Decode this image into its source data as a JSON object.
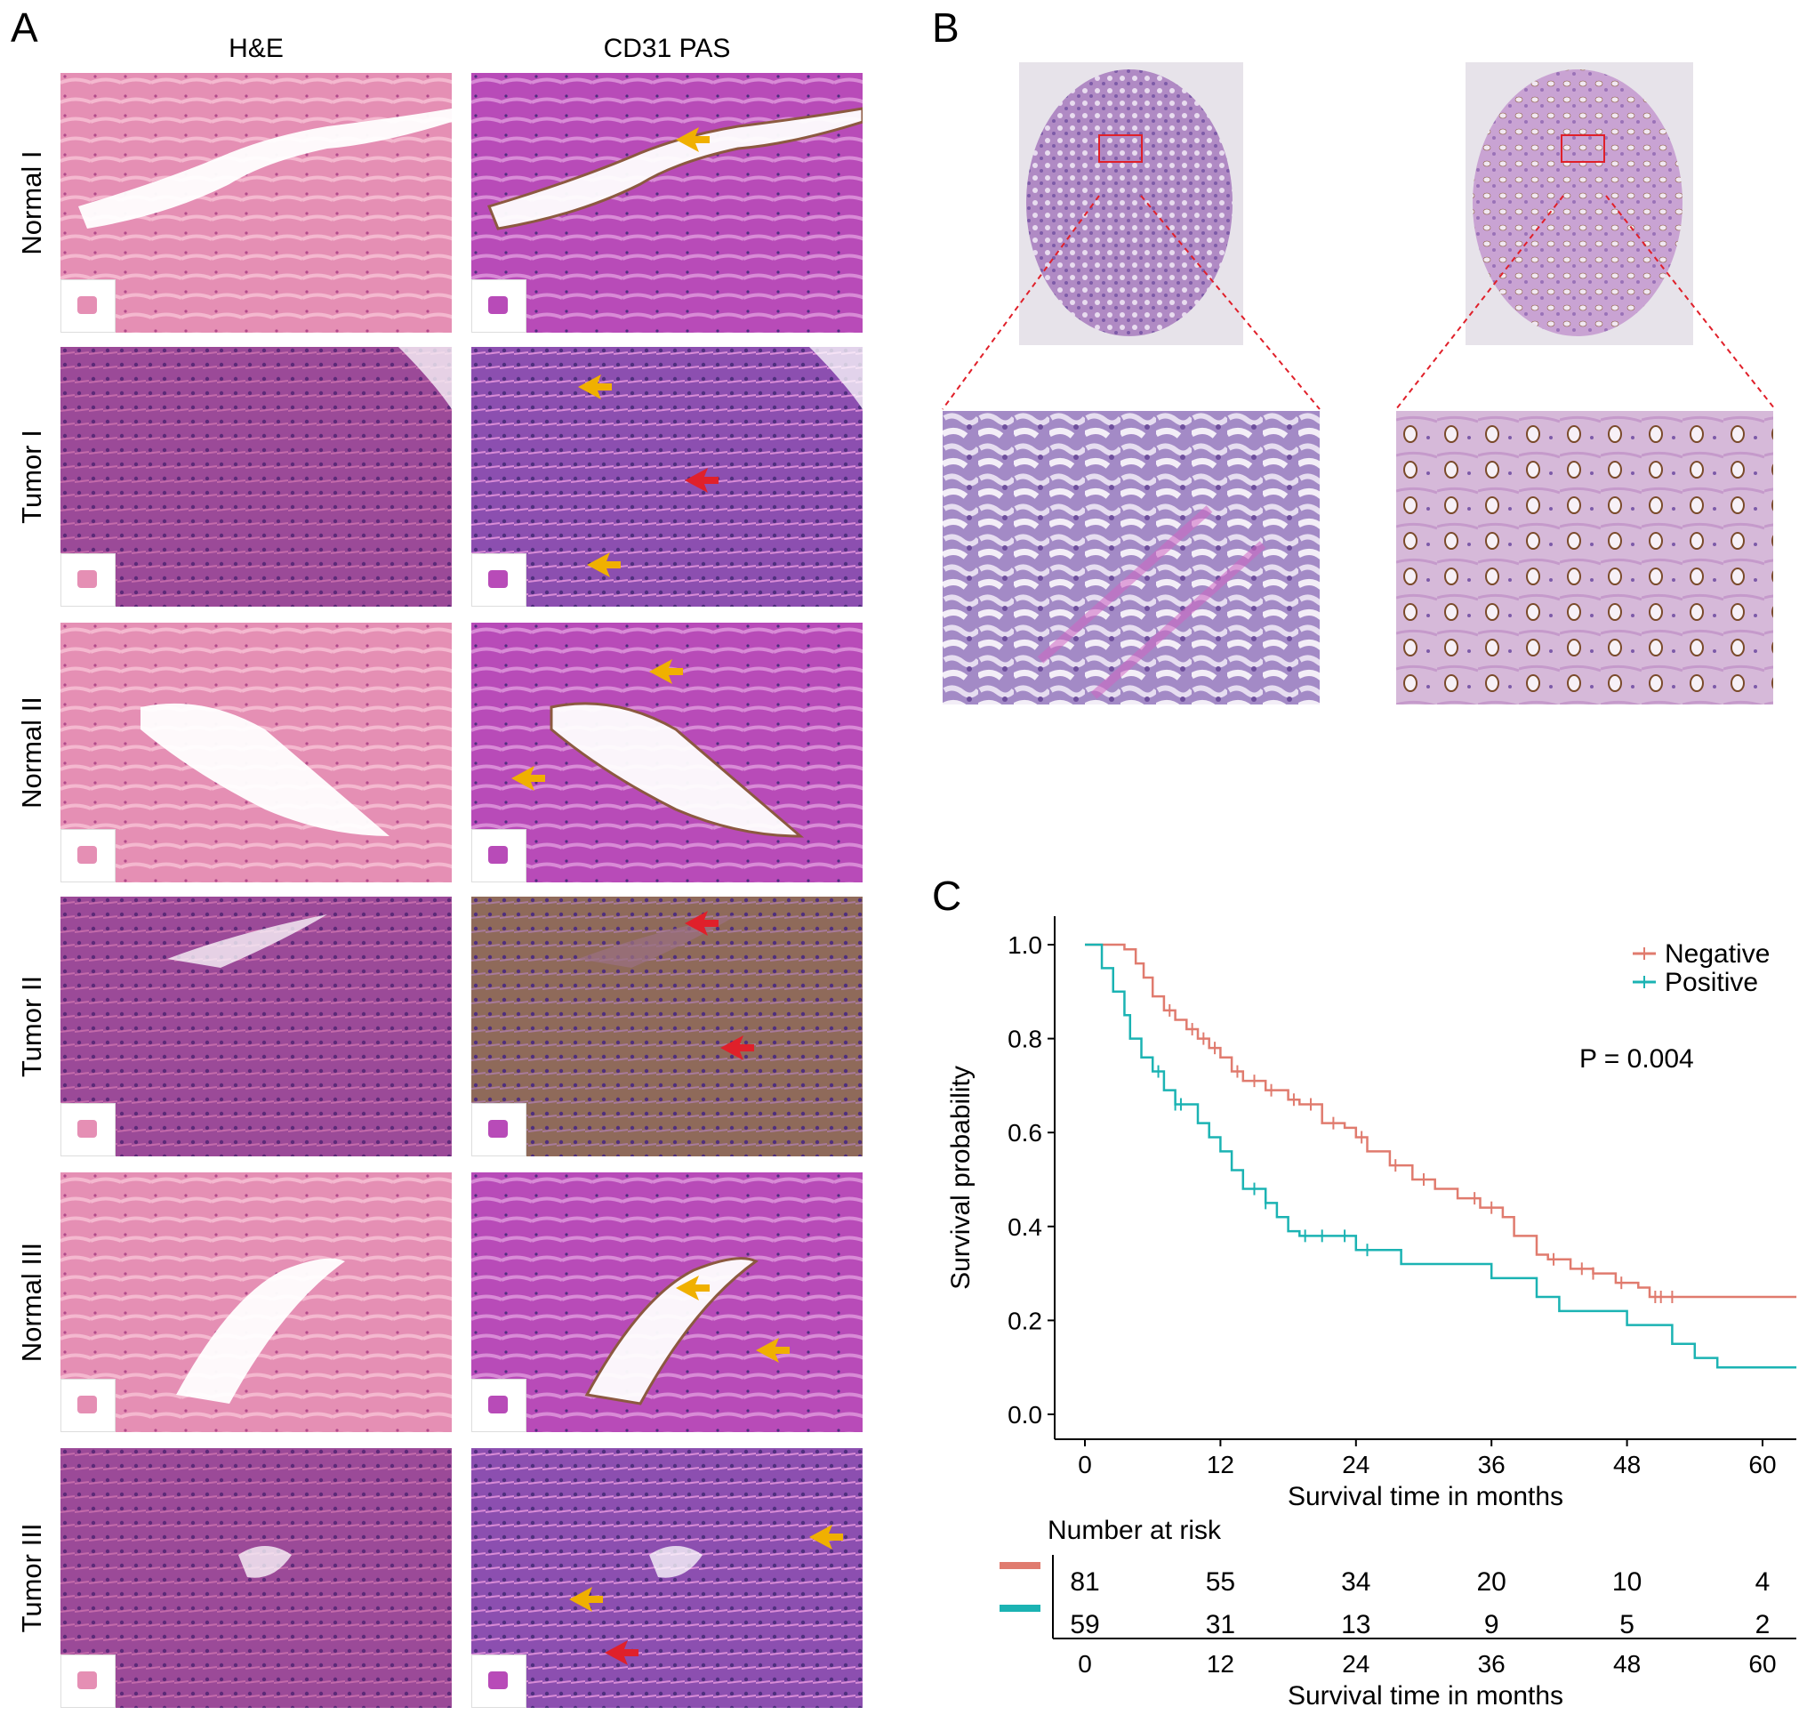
{
  "panels": {
    "a": "A",
    "b": "B",
    "c": "C"
  },
  "panel_a": {
    "columns": [
      "H&E",
      "CD31 PAS"
    ],
    "rows": [
      "Normal I",
      "Tumor I",
      "Normal II",
      "Tumor II",
      "Normal III",
      "Tumor III"
    ]
  },
  "colors": {
    "he_pink": "#e58fb4",
    "he_purple": "#9b4a98",
    "pas_magenta": "#b84bb8",
    "pas_purple": "#8c4fb0",
    "brown": "#8a5a3a",
    "negative": "#e07b6e",
    "positive": "#1bb3b3"
  },
  "chart_data": {
    "type": "line",
    "title": "",
    "xlabel": "Survival time in months",
    "ylabel": "Survival probability",
    "xlim": [
      0,
      63
    ],
    "ylim": [
      0,
      1.0
    ],
    "xticks": [
      "0",
      "12",
      "24",
      "36",
      "48",
      "60"
    ],
    "yticks": [
      "0.0",
      "0.2",
      "0.4",
      "0.6",
      "0.8",
      "1.0"
    ],
    "legend_position": "top-right",
    "annotation": "P = 0.004",
    "series": [
      {
        "name": "Negative",
        "color": "#e07b6e",
        "x": [
          0,
          3.5,
          4.5,
          5.2,
          6,
          7,
          8,
          9,
          10,
          11,
          12,
          13,
          14,
          16,
          18,
          19,
          21,
          23,
          24,
          25,
          27,
          29,
          31,
          33,
          35,
          37,
          38,
          40,
          41,
          43,
          45,
          47,
          49,
          50,
          52,
          63
        ],
        "y": [
          1.0,
          0.99,
          0.96,
          0.93,
          0.89,
          0.86,
          0.84,
          0.82,
          0.8,
          0.78,
          0.76,
          0.73,
          0.71,
          0.69,
          0.67,
          0.66,
          0.62,
          0.61,
          0.59,
          0.56,
          0.53,
          0.5,
          0.48,
          0.46,
          0.44,
          0.42,
          0.38,
          0.34,
          0.33,
          0.31,
          0.3,
          0.28,
          0.27,
          0.25,
          0.25,
          0.25
        ],
        "censored_x": [
          7.5,
          9.5,
          10.5,
          11.5,
          13.5,
          15,
          16.5,
          18.5,
          20,
          22,
          24.5,
          27.5,
          30,
          34.5,
          36,
          41.5,
          44,
          45,
          47.5,
          50.5,
          51,
          52
        ]
      },
      {
        "name": "Positive",
        "color": "#1bb3b3",
        "x": [
          0,
          1.5,
          2.5,
          3.5,
          4,
          5,
          6,
          7,
          8,
          10,
          11,
          12,
          13,
          14,
          16,
          17,
          18,
          19,
          22,
          24,
          28,
          36,
          40,
          42,
          48,
          52,
          54,
          56,
          63
        ],
        "y": [
          1.0,
          0.95,
          0.9,
          0.85,
          0.8,
          0.76,
          0.73,
          0.69,
          0.66,
          0.62,
          0.59,
          0.56,
          0.52,
          0.48,
          0.45,
          0.42,
          0.39,
          0.38,
          0.38,
          0.35,
          0.32,
          0.29,
          0.25,
          0.22,
          0.19,
          0.15,
          0.12,
          0.1,
          0.1
        ],
        "censored_x": [
          6.5,
          8,
          8.5,
          15,
          16,
          19.5,
          21,
          23,
          25
        ]
      }
    ],
    "risk_table": {
      "title": "Number at risk",
      "x": [
        0,
        12,
        24,
        36,
        48,
        60
      ],
      "rows": [
        {
          "name": "Negative",
          "color": "#e07b6e",
          "values": [
            "81",
            "55",
            "34",
            "20",
            "10",
            "4"
          ]
        },
        {
          "name": "Positive",
          "color": "#1bb3b3",
          "values": [
            "59",
            "31",
            "13",
            "9",
            "5",
            "2"
          ]
        }
      ],
      "xlabel": "Survival time in months"
    }
  }
}
